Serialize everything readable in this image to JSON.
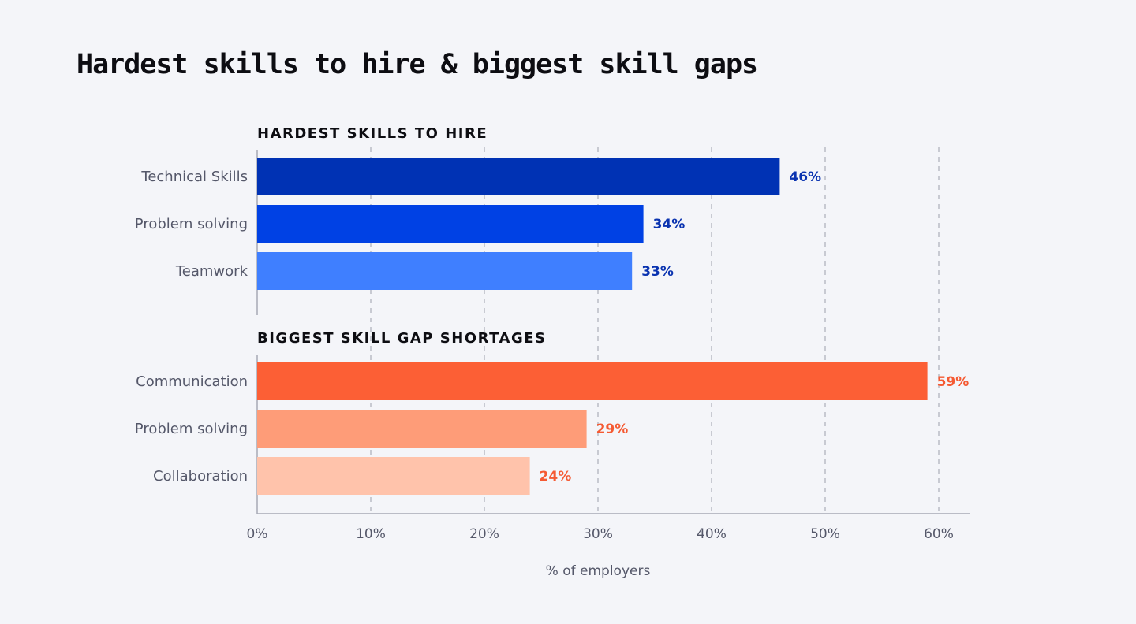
{
  "title": "Hardest skills to hire & biggest skill gaps",
  "chart_data": {
    "type": "bar",
    "orientation": "horizontal",
    "xlabel": "% of employers",
    "xlim": [
      0,
      60
    ],
    "xticks": [
      "0%",
      "10%",
      "20%",
      "30%",
      "40%",
      "50%",
      "60%"
    ],
    "grid": "vertical dashed",
    "groups": [
      {
        "title": "HARDEST SKILLS TO HIRE",
        "label_color": "#0a33b0",
        "bars": [
          {
            "category": "Technical Skills",
            "value": 46,
            "label": "46%",
            "color": "#0032b4"
          },
          {
            "category": "Problem solving",
            "value": 34,
            "label": "34%",
            "color": "#0041e4"
          },
          {
            "category": "Teamwork",
            "value": 33,
            "label": "33%",
            "color": "#3f7fff"
          }
        ]
      },
      {
        "title": "BIGGEST SKILL GAP SHORTAGES",
        "label_color": "#f55a33",
        "bars": [
          {
            "category": "Communication",
            "value": 59,
            "label": "59%",
            "color": "#fc5f35"
          },
          {
            "category": "Problem solving",
            "value": 29,
            "label": "29%",
            "color": "#fe9c78"
          },
          {
            "category": "Collaboration",
            "value": 24,
            "label": "24%",
            "color": "#ffc3ab"
          }
        ]
      }
    ]
  }
}
